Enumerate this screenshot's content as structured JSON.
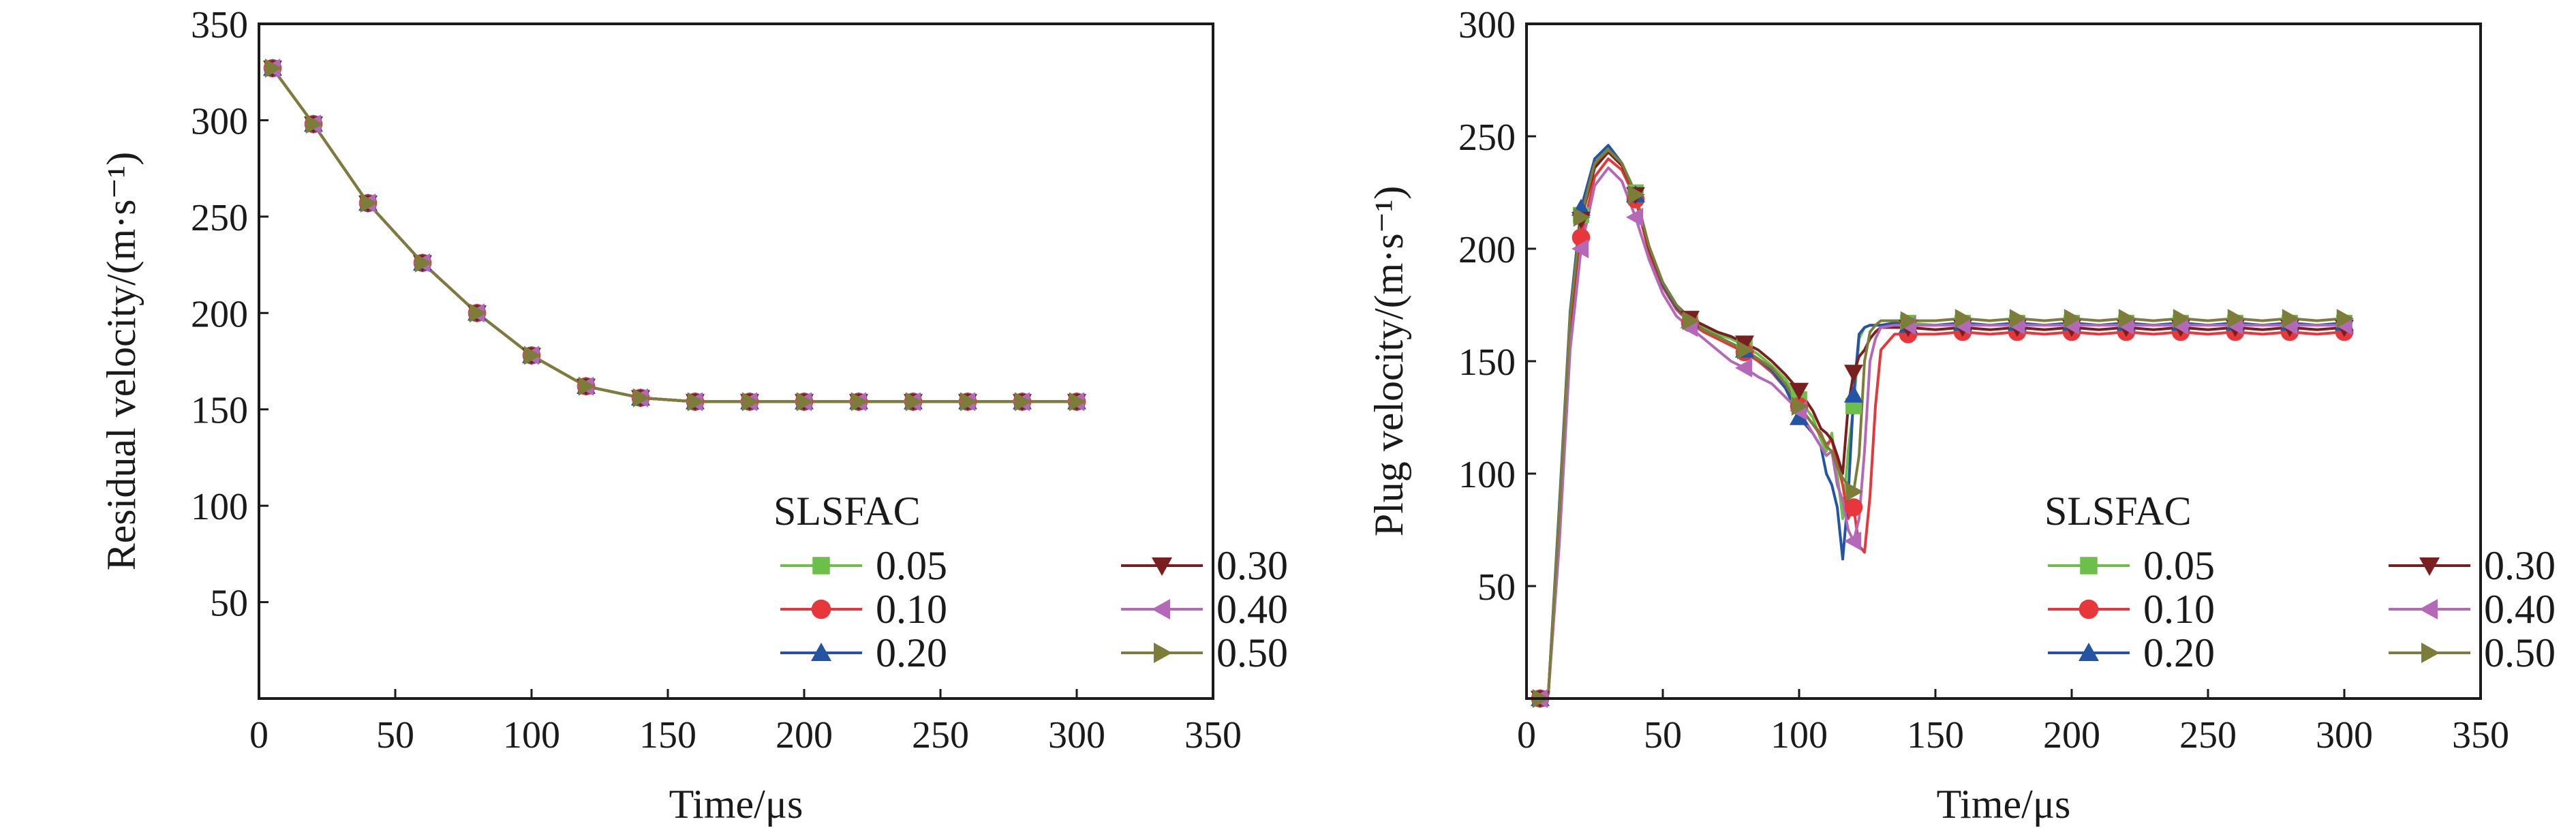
{
  "legend_title": "SLSFAC",
  "series_styles": [
    {
      "name": "0.05",
      "color": "#6cc04a",
      "marker": "square"
    },
    {
      "name": "0.10",
      "color": "#e8373a",
      "marker": "circle"
    },
    {
      "name": "0.20",
      "color": "#2454a4",
      "marker": "triangle-up"
    },
    {
      "name": "0.30",
      "color": "#7a1f1f",
      "marker": "triangle-down"
    },
    {
      "name": "0.40",
      "color": "#b469b8",
      "marker": "triangle-left"
    },
    {
      "name": "0.50",
      "color": "#7d7d3a",
      "marker": "triangle-right"
    }
  ],
  "chart_data": [
    {
      "type": "line",
      "title": "",
      "xlabel": "Time/μs",
      "ylabel": "Residual velocity/(m·s⁻¹)",
      "xlim": [
        0,
        350
      ],
      "ylim": [
        0,
        350
      ],
      "xticks": [
        0,
        50,
        100,
        150,
        200,
        250,
        300,
        350
      ],
      "yticks": [
        50,
        100,
        150,
        200,
        250,
        300,
        350
      ],
      "legend_position": "bottom-right",
      "x": [
        2,
        5,
        20,
        40,
        60,
        80,
        100,
        120,
        140,
        160,
        180,
        200,
        220,
        240,
        260,
        280,
        300
      ],
      "series": [
        {
          "name": "0.05",
          "values": [
            327,
            327,
            298,
            257,
            226,
            200,
            178,
            162,
            156,
            154,
            154,
            154,
            154,
            154,
            154,
            154,
            154
          ]
        },
        {
          "name": "0.10",
          "values": [
            327,
            327,
            298,
            257,
            226,
            200,
            178,
            162,
            156,
            154,
            154,
            154,
            154,
            154,
            154,
            154,
            154
          ]
        },
        {
          "name": "0.20",
          "values": [
            327,
            327,
            298,
            257,
            226,
            200,
            178,
            162,
            156,
            154,
            154,
            154,
            154,
            154,
            154,
            154,
            154
          ]
        },
        {
          "name": "0.30",
          "values": [
            327,
            327,
            298,
            257,
            226,
            200,
            178,
            162,
            156,
            154,
            154,
            154,
            154,
            154,
            154,
            154,
            154
          ]
        },
        {
          "name": "0.40",
          "values": [
            327,
            327,
            298,
            257,
            226,
            200,
            178,
            162,
            156,
            154,
            154,
            154,
            154,
            154,
            154,
            154,
            154
          ]
        },
        {
          "name": "0.50",
          "values": [
            327,
            327,
            298,
            257,
            226,
            200,
            178,
            162,
            156,
            154,
            154,
            154,
            154,
            154,
            154,
            154,
            154
          ]
        }
      ]
    },
    {
      "type": "line",
      "title": "",
      "xlabel": "Time/μs",
      "ylabel": "Plug velocity/(m·s⁻¹)",
      "xlim": [
        0,
        350
      ],
      "ylim": [
        0,
        300
      ],
      "xticks": [
        0,
        50,
        100,
        150,
        200,
        250,
        300,
        350
      ],
      "yticks": [
        50,
        100,
        150,
        200,
        250,
        300
      ],
      "legend_position": "bottom-right",
      "x": [
        5,
        8,
        12,
        16,
        20,
        25,
        30,
        35,
        40,
        45,
        50,
        55,
        60,
        65,
        70,
        75,
        80,
        85,
        90,
        95,
        100,
        105,
        108,
        110,
        112,
        114,
        116,
        118,
        120,
        122,
        124,
        126,
        128,
        130,
        135,
        140,
        150,
        160,
        170,
        180,
        190,
        200,
        210,
        220,
        230,
        240,
        250,
        260,
        270,
        280,
        290,
        300
      ],
      "series": [
        {
          "name": "0.05",
          "values": [
            0,
            2,
            80,
            170,
            215,
            238,
            245,
            238,
            225,
            200,
            185,
            175,
            168,
            165,
            162,
            160,
            157,
            153,
            148,
            142,
            133,
            125,
            115,
            110,
            118,
            100,
            80,
            110,
            130,
            160,
            165,
            166,
            166,
            166,
            167,
            167,
            166,
            167,
            166,
            167,
            166,
            167,
            166,
            167,
            166,
            167,
            166,
            167,
            166,
            167,
            166,
            167
          ]
        },
        {
          "name": "0.10",
          "values": [
            0,
            2,
            70,
            160,
            205,
            232,
            240,
            235,
            222,
            198,
            183,
            173,
            167,
            163,
            160,
            157,
            154,
            150,
            145,
            138,
            130,
            122,
            117,
            113,
            115,
            105,
            95,
            80,
            85,
            68,
            65,
            90,
            130,
            155,
            162,
            162,
            162,
            163,
            162,
            163,
            162,
            163,
            162,
            163,
            162,
            163,
            162,
            163,
            162,
            163,
            162,
            163
          ]
        },
        {
          "name": "0.20",
          "values": [
            0,
            2,
            85,
            172,
            218,
            240,
            246,
            238,
            224,
            200,
            184,
            174,
            168,
            164,
            161,
            158,
            155,
            151,
            146,
            138,
            125,
            118,
            112,
            100,
            95,
            85,
            62,
            90,
            135,
            162,
            165,
            166,
            166,
            166,
            167,
            166,
            166,
            167,
            166,
            167,
            166,
            167,
            166,
            167,
            166,
            167,
            166,
            167,
            166,
            167,
            166,
            167
          ]
        },
        {
          "name": "0.30",
          "values": [
            0,
            2,
            80,
            168,
            213,
            236,
            243,
            237,
            224,
            200,
            185,
            175,
            169,
            166,
            163,
            161,
            158,
            155,
            150,
            144,
            137,
            128,
            120,
            118,
            115,
            108,
            100,
            130,
            145,
            152,
            155,
            160,
            163,
            165,
            165,
            165,
            164,
            165,
            164,
            165,
            164,
            165,
            164,
            165,
            164,
            165,
            164,
            165,
            164,
            165,
            164,
            165
          ]
        },
        {
          "name": "0.40",
          "values": [
            0,
            2,
            68,
            155,
            200,
            228,
            236,
            230,
            214,
            195,
            180,
            170,
            165,
            160,
            155,
            150,
            147,
            143,
            140,
            134,
            128,
            118,
            112,
            108,
            110,
            95,
            88,
            75,
            70,
            80,
            110,
            150,
            160,
            165,
            166,
            166,
            166,
            166,
            166,
            166,
            166,
            166,
            166,
            166,
            166,
            166,
            166,
            166,
            166,
            166,
            166,
            166
          ]
        },
        {
          "name": "0.50",
          "values": [
            0,
            2,
            82,
            170,
            214,
            238,
            244,
            238,
            224,
            201,
            185,
            175,
            168,
            164,
            161,
            158,
            155,
            151,
            147,
            140,
            130,
            122,
            118,
            112,
            110,
            103,
            98,
            95,
            92,
            108,
            150,
            163,
            166,
            168,
            168,
            168,
            168,
            169,
            168,
            169,
            168,
            169,
            168,
            169,
            168,
            169,
            168,
            169,
            168,
            169,
            168,
            169
          ]
        }
      ]
    }
  ]
}
